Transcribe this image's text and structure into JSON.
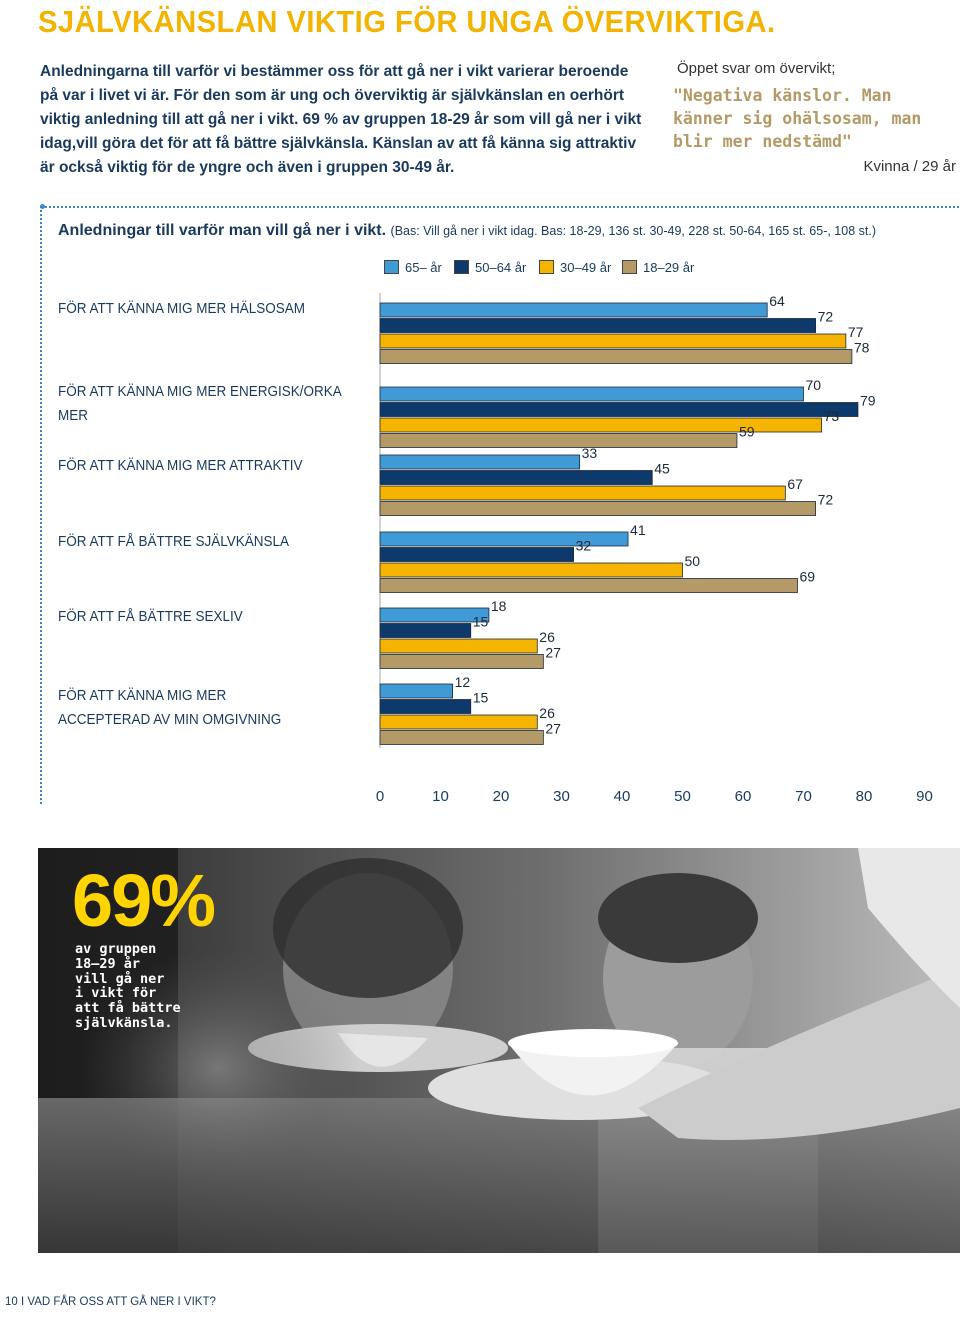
{
  "page": {
    "title": "SJÄLVKÄNSLAN VIKTIG FÖR UNGA ÖVERVIKTIGA.",
    "intro": "Anledningarna till varför vi bestämmer oss för att gå ner i vikt varierar beroende på var i livet vi är. För den som är ung och överviktig är självkänslan en oerhört viktig anledning till att gå ner i vikt. 69 % av gruppen 18-29 år som vill gå ner i vikt idag,vill göra det för att få bättre självkänsla. Känslan av att få känna sig attraktiv är också viktig för de yngre och även i gruppen 30-49 år."
  },
  "quote": {
    "label": "Öppet svar om övervikt;",
    "text": "\"Negativa känslor. Man känner sig ohälsosam, man blir mer nedstämd\"",
    "author": "Kvinna / 29 år"
  },
  "chart_data": {
    "type": "bar",
    "orientation": "horizontal",
    "title": "Anledningar till varför man vill gå ner i vikt.",
    "subtitle": "(Bas: Vill gå ner i vikt idag. Bas: 18-29, 136 st. 30-49, 228 st. 50-64, 165 st. 65-, 108 st.)",
    "categories": [
      "FÖR ATT KÄNNA MIG MER HÄLSOSAM",
      "FÖR ATT KÄNNA MIG MER ENERGISK/ORKA MER",
      "FÖR ATT KÄNNA MIG MER ATTRAKTIV",
      "FÖR ATT FÅ BÄTTRE SJÄLVKÄNSLA",
      "FÖR ATT FÅ BÄTTRE SEXLIV",
      "FÖR ATT KÄNNA MIG MER ACCEPTERAD AV MIN OMGIVNING"
    ],
    "series": [
      {
        "name": "65– år",
        "color": "#3f9ad6",
        "values": [
          64,
          70,
          33,
          41,
          18,
          12
        ]
      },
      {
        "name": "50–64 år",
        "color": "#0e3a6b",
        "values": [
          72,
          79,
          45,
          32,
          15,
          15
        ]
      },
      {
        "name": "30–49 år",
        "color": "#f5b400",
        "values": [
          77,
          73,
          67,
          50,
          26,
          26
        ]
      },
      {
        "name": "18–29 år",
        "color": "#b39a66",
        "values": [
          78,
          59,
          72,
          69,
          27,
          27
        ]
      }
    ],
    "xticks": [
      0,
      10,
      20,
      30,
      40,
      50,
      60,
      70,
      80,
      90
    ],
    "xlim": [
      0,
      90
    ],
    "legend_position": "top",
    "grid": false
  },
  "highlight": {
    "value": "69%",
    "caption": "av gruppen\n18–29 år\nvill gå ner\ni vikt för\natt få bättre\nsjälvkänsla."
  },
  "footer": "10  I  VAD FÅR OSS ATT GÅ NER I VIKT?"
}
